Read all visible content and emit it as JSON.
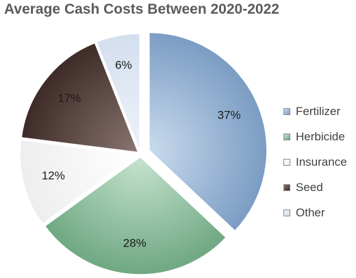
{
  "chart_data": {
    "type": "pie",
    "title": "Average Cash Costs Between 2020-2022",
    "categories": [
      "Fertilizer",
      "Herbicide",
      "Insurance",
      "Seed",
      "Other"
    ],
    "values": [
      37,
      28,
      12,
      17,
      6
    ],
    "value_labels": [
      "37%",
      "28%",
      "12%",
      "17%",
      "6%"
    ],
    "exploded": true,
    "legend_position": "right",
    "colors": {
      "Fertilizer": {
        "light": "#c9dbed",
        "dark": "#7b9cc3"
      },
      "Herbicide": {
        "light": "#c7e3cf",
        "dark": "#6fa882"
      },
      "Insurance": {
        "light": "#ffffff",
        "dark": "#eeeeee"
      },
      "Seed": {
        "light": "#8a7570",
        "dark": "#3e2b27"
      },
      "Other": {
        "light": "#eef3fa",
        "dark": "#d4dfee"
      }
    }
  }
}
